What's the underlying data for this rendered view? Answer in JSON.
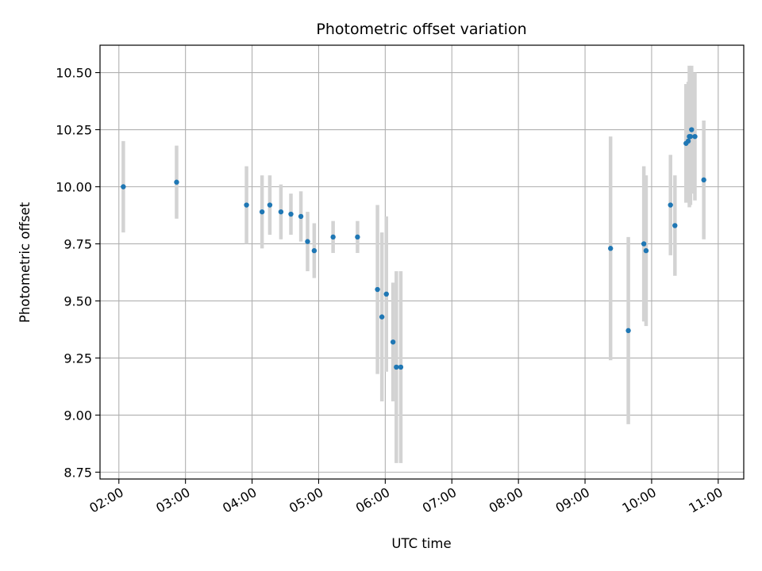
{
  "chart_data": {
    "type": "scatter",
    "title": "Photometric offset variation",
    "xlabel": "UTC time",
    "ylabel": "Photometric offset",
    "x_ticks": [
      "02:00",
      "03:00",
      "04:00",
      "05:00",
      "06:00",
      "07:00",
      "08:00",
      "09:00",
      "10:00",
      "11:00"
    ],
    "y_ticks": [
      "8.75",
      "9.00",
      "9.25",
      "9.50",
      "9.75",
      "10.00",
      "10.25",
      "10.50"
    ],
    "xlim": [
      "01:43",
      "11:23"
    ],
    "ylim": [
      8.72,
      10.62
    ],
    "grid": true,
    "colors": {
      "point": "#1f77b4",
      "errorbar": "#d3d3d3",
      "grid": "#b0b0b0"
    },
    "points": [
      {
        "t": "02:04",
        "y": 10.0,
        "err": 0.2
      },
      {
        "t": "02:52",
        "y": 10.02,
        "err": 0.16
      },
      {
        "t": "03:55",
        "y": 9.92,
        "err": 0.17
      },
      {
        "t": "04:09",
        "y": 9.89,
        "err": 0.16
      },
      {
        "t": "04:16",
        "y": 9.92,
        "err": 0.13
      },
      {
        "t": "04:26",
        "y": 9.89,
        "err": 0.12
      },
      {
        "t": "04:35",
        "y": 9.88,
        "err": 0.09
      },
      {
        "t": "04:44",
        "y": 9.87,
        "err": 0.11
      },
      {
        "t": "04:50",
        "y": 9.76,
        "err": 0.13
      },
      {
        "t": "04:56",
        "y": 9.72,
        "err": 0.12
      },
      {
        "t": "05:13",
        "y": 9.78,
        "err": 0.07
      },
      {
        "t": "05:35",
        "y": 9.78,
        "err": 0.07
      },
      {
        "t": "05:53",
        "y": 9.55,
        "err": 0.37
      },
      {
        "t": "05:57",
        "y": 9.43,
        "err": 0.37
      },
      {
        "t": "06:01",
        "y": 9.53,
        "err": 0.34
      },
      {
        "t": "06:07",
        "y": 9.32,
        "err": 0.26
      },
      {
        "t": "06:10",
        "y": 9.21,
        "err": 0.42
      },
      {
        "t": "06:14",
        "y": 9.21,
        "err": 0.42
      },
      {
        "t": "09:23",
        "y": 9.73,
        "err": 0.49
      },
      {
        "t": "09:39",
        "y": 9.37,
        "err": 0.41
      },
      {
        "t": "09:53",
        "y": 9.75,
        "err": 0.34
      },
      {
        "t": "09:55",
        "y": 9.72,
        "err": 0.33
      },
      {
        "t": "10:17",
        "y": 9.92,
        "err": 0.22
      },
      {
        "t": "10:21",
        "y": 9.83,
        "err": 0.22
      },
      {
        "t": "10:31",
        "y": 10.19,
        "err": 0.26
      },
      {
        "t": "10:33",
        "y": 10.2,
        "err": 0.26
      },
      {
        "t": "10:34",
        "y": 10.22,
        "err": 0.31
      },
      {
        "t": "10:35",
        "y": 10.22,
        "err": 0.3
      },
      {
        "t": "10:36",
        "y": 10.25,
        "err": 0.28
      },
      {
        "t": "10:39",
        "y": 10.22,
        "err": 0.28
      },
      {
        "t": "10:47",
        "y": 10.03,
        "err": 0.26
      }
    ]
  }
}
